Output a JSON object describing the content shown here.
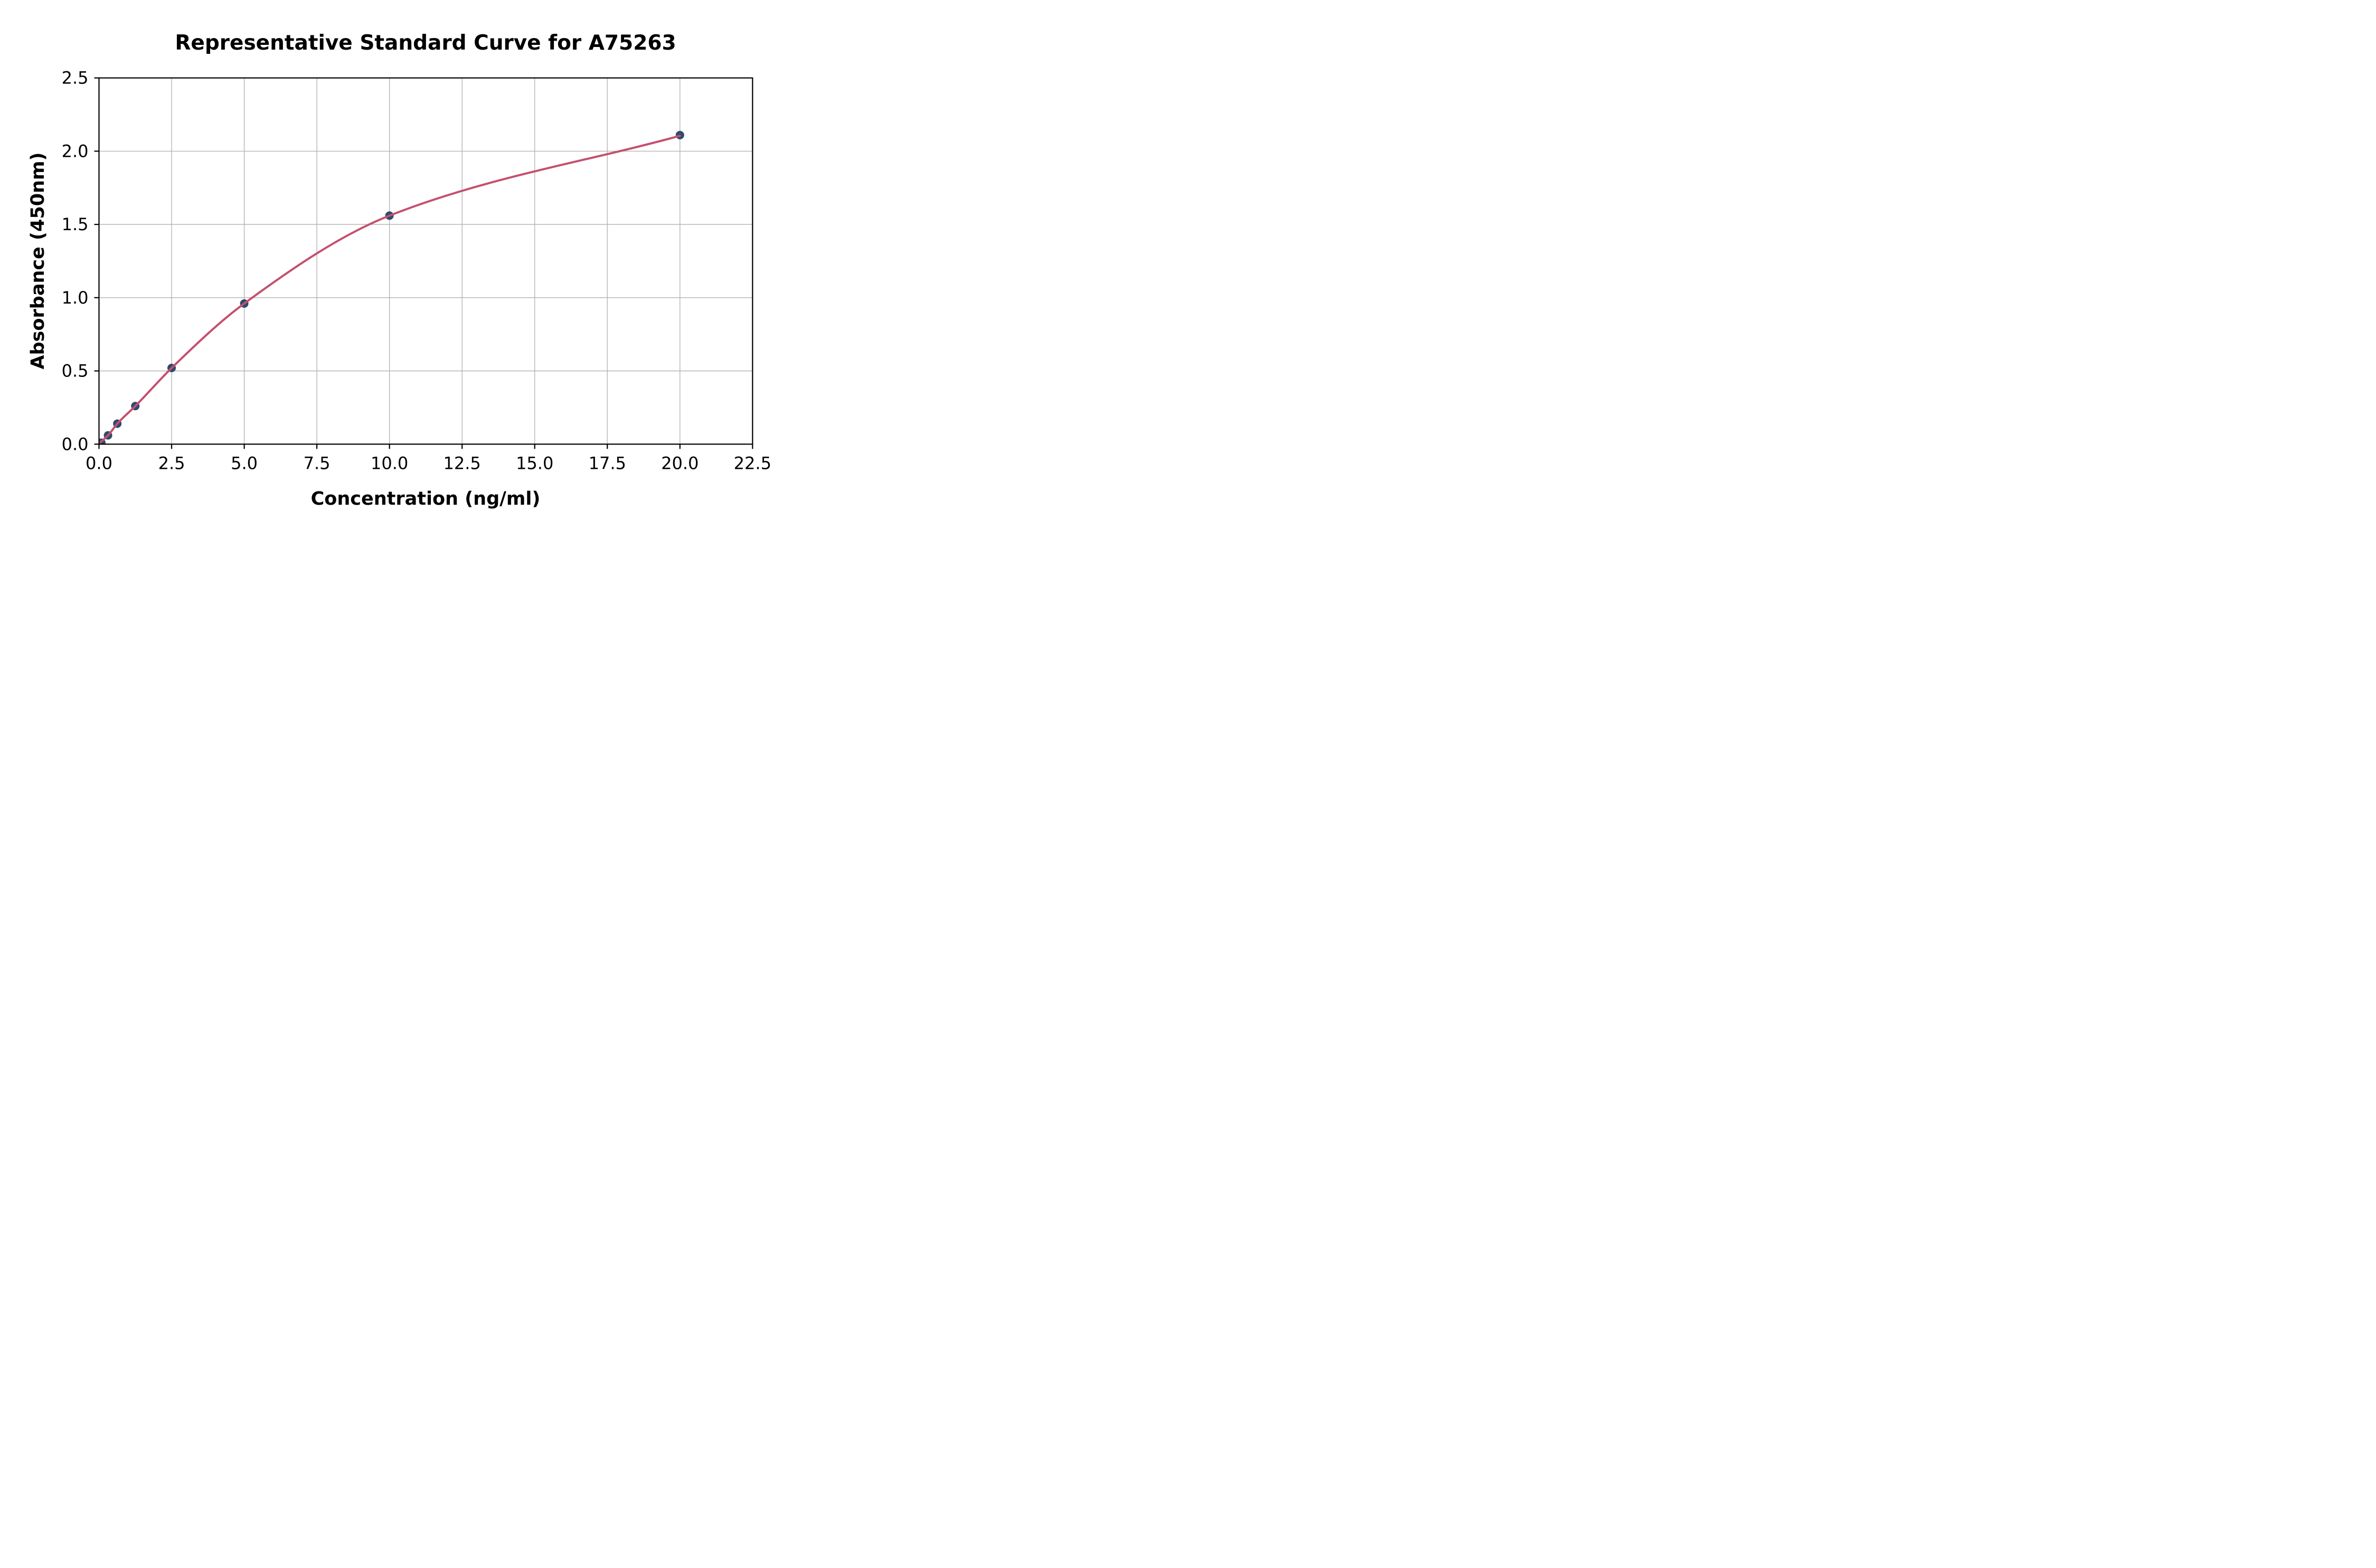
{
  "chart_data": {
    "type": "scatter",
    "title": "Representative Standard Curve for A75263",
    "xlabel": "Concentration (ng/ml)",
    "ylabel": "Absorbance (450nm)",
    "xlim": [
      0,
      22.5
    ],
    "ylim": [
      0,
      2.5
    ],
    "grid": true,
    "legend": "none",
    "xticks": {
      "values": [
        0,
        2.5,
        5,
        7.5,
        10,
        12.5,
        15,
        17.5,
        20,
        22.5
      ],
      "labels": [
        "0.0",
        "2.5",
        "5.0",
        "7.5",
        "10.0",
        "12.5",
        "15.0",
        "17.5",
        "20.0",
        "22.5"
      ]
    },
    "yticks": {
      "values": [
        0,
        0.5,
        1,
        1.5,
        2,
        2.5
      ],
      "labels": [
        "0.0",
        "0.5",
        "1.0",
        "1.5",
        "2.0",
        "2.5"
      ]
    },
    "points": {
      "x": [
        0.08,
        0.31,
        0.63,
        1.25,
        2.5,
        5.0,
        10.0,
        20.0
      ],
      "y": [
        0.01,
        0.06,
        0.14,
        0.26,
        0.52,
        0.96,
        1.56,
        2.11
      ]
    },
    "fit_curve": {
      "x": [
        0,
        0.31,
        0.63,
        1.25,
        2.5,
        5.0,
        10.0,
        20.0
      ],
      "y": [
        0.005,
        0.06,
        0.14,
        0.26,
        0.52,
        0.96,
        1.56,
        2.105
      ]
    },
    "colors": {
      "marker": "#2e4a6e",
      "curve": "#c4506e",
      "grid": "#b0b0b0",
      "axis": "#000000",
      "background": "#ffffff"
    }
  }
}
